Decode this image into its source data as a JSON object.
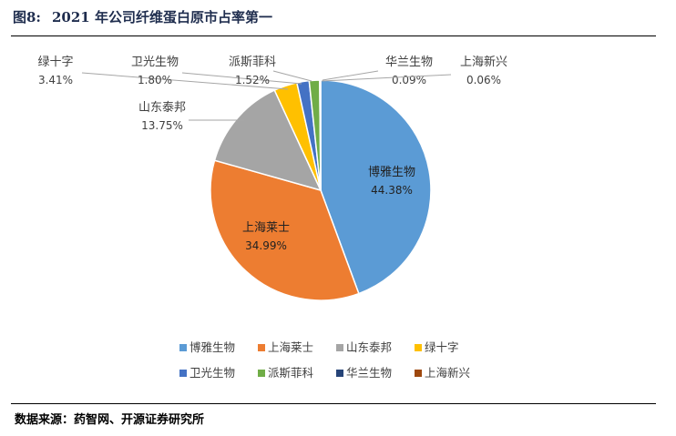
{
  "figure": {
    "number": "图8:",
    "title": "2021 年公司纤维蛋白原市占率第一"
  },
  "source": "数据来源：药智网、开源证券研究所",
  "chart_data": {
    "type": "pie",
    "unit": "%",
    "slices": [
      {
        "name": "博雅生物",
        "value": 44.38,
        "label": "44.38%",
        "color": "#5b9bd5"
      },
      {
        "name": "上海莱士",
        "value": 34.99,
        "label": "34.99%",
        "color": "#ed7d31"
      },
      {
        "name": "山东泰邦",
        "value": 13.75,
        "label": "13.75%",
        "color": "#a5a5a5"
      },
      {
        "name": "绿十字",
        "value": 3.41,
        "label": "3.41%",
        "color": "#ffc000"
      },
      {
        "name": "卫光生物",
        "value": 1.8,
        "label": "1.80%",
        "color": "#4472c4"
      },
      {
        "name": "派斯菲科",
        "value": 1.52,
        "label": "1.52%",
        "color": "#70ad47"
      },
      {
        "name": "华兰生物",
        "value": 0.09,
        "label": "0.09%",
        "color": "#264478"
      },
      {
        "name": "上海新兴",
        "value": 0.06,
        "label": "0.06%",
        "color": "#9e480e"
      }
    ],
    "legend_position": "bottom"
  }
}
